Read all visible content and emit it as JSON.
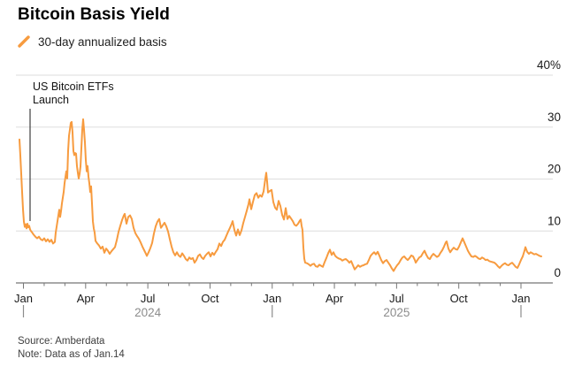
{
  "header": {
    "title": "Bitcoin Basis Yield",
    "legend": {
      "label": "30-day annualized basis"
    }
  },
  "annotation": {
    "line1": "US Bitcoin ETFs",
    "line2": "Launch"
  },
  "footer": {
    "source": "Source: Amberdata",
    "note": "Note: Data as of Jan.14"
  },
  "colors": {
    "line": "#F79B3F",
    "grid": "#DEDEDE",
    "axis": "#767676",
    "axis_label": "#1A1A1A",
    "year_label": "#8C8C8C",
    "annotation_line": "#3D3D3D",
    "background": "#FFFFFF"
  },
  "chart_data": {
    "type": "line",
    "title": "Bitcoin Basis Yield",
    "series_name": "30-day annualized basis",
    "unit": "percent",
    "ylim": [
      0,
      40
    ],
    "grid": "horizontal-only",
    "legend_position": "top-left",
    "y_axis": {
      "side": "right",
      "tick_values": [
        40,
        30,
        20,
        10,
        0
      ],
      "tick_labels": [
        "40%",
        "30",
        "20",
        "10",
        "0"
      ]
    },
    "x_axis": {
      "month_labels": [
        "Jan",
        "Apr",
        "Jul",
        "Oct",
        "Jan",
        "Apr",
        "Jul",
        "Oct",
        "Jan"
      ],
      "year_labels": [
        "2024",
        "2025"
      ],
      "months_total": 25,
      "label_every_n_months": 3,
      "range": "Jan 2024 - Jan 2026"
    },
    "annotation_text": "US Bitcoin ETFs Launch",
    "annotation_x_month": 0.35,
    "points": [
      [
        22,
        27.6
      ],
      [
        23,
        24.5
      ],
      [
        24,
        21.0
      ],
      [
        25,
        17.5
      ],
      [
        26,
        14.2
      ],
      [
        27,
        11.8
      ],
      [
        28,
        10.8
      ],
      [
        29,
        11.3
      ],
      [
        30,
        10.5
      ],
      [
        31,
        11.4
      ],
      [
        32,
        10.7
      ],
      [
        33,
        11.0
      ],
      [
        34,
        10.3
      ],
      [
        35,
        10.0
      ],
      [
        36,
        9.8
      ],
      [
        38,
        9.3
      ],
      [
        40,
        8.9
      ],
      [
        42,
        8.6
      ],
      [
        44,
        8.9
      ],
      [
        46,
        8.4
      ],
      [
        48,
        8.2
      ],
      [
        50,
        8.6
      ],
      [
        52,
        8.0
      ],
      [
        54,
        8.4
      ],
      [
        56,
        7.9
      ],
      [
        58,
        8.3
      ],
      [
        60,
        7.6
      ],
      [
        62,
        7.9
      ],
      [
        63,
        9.7
      ],
      [
        64,
        10.8
      ],
      [
        65,
        11.9
      ],
      [
        66,
        13.0
      ],
      [
        67,
        14.1
      ],
      [
        68,
        12.7
      ],
      [
        69,
        13.8
      ],
      [
        70,
        15.3
      ],
      [
        71,
        16.4
      ],
      [
        72,
        17.5
      ],
      [
        73,
        19.2
      ],
      [
        74,
        20.4
      ],
      [
        75,
        21.5
      ],
      [
        76,
        20.1
      ],
      [
        77,
        25.4
      ],
      [
        78,
        28.3
      ],
      [
        79,
        29.5
      ],
      [
        80,
        30.8
      ],
      [
        81,
        31.0
      ],
      [
        82,
        29.0
      ],
      [
        83,
        25.4
      ],
      [
        84,
        24.6
      ],
      [
        85,
        25.0
      ],
      [
        86,
        24.9
      ],
      [
        87,
        22.5
      ],
      [
        88,
        21.2
      ],
      [
        89,
        20.1
      ],
      [
        90,
        21.0
      ],
      [
        91,
        22.4
      ],
      [
        92,
        25.9
      ],
      [
        93,
        29.5
      ],
      [
        94,
        31.5
      ],
      [
        95,
        29.5
      ],
      [
        96,
        27.1
      ],
      [
        97,
        23.7
      ],
      [
        98,
        21.5
      ],
      [
        99,
        22.5
      ],
      [
        100,
        20.5
      ],
      [
        101,
        19.2
      ],
      [
        102,
        17.5
      ],
      [
        103,
        18.6
      ],
      [
        104,
        15.3
      ],
      [
        105,
        11.9
      ],
      [
        106,
        10.5
      ],
      [
        107,
        9.7
      ],
      [
        108,
        8.1
      ],
      [
        110,
        7.6
      ],
      [
        112,
        7.2
      ],
      [
        114,
        6.6
      ],
      [
        116,
        7.0
      ],
      [
        118,
        5.8
      ],
      [
        120,
        6.6
      ],
      [
        122,
        6.2
      ],
      [
        124,
        5.6
      ],
      [
        126,
        6.1
      ],
      [
        128,
        6.5
      ],
      [
        130,
        6.9
      ],
      [
        132,
        8.2
      ],
      [
        134,
        9.8
      ],
      [
        136,
        11.0
      ],
      [
        138,
        12.1
      ],
      [
        140,
        13.0
      ],
      [
        141,
        13.3
      ],
      [
        143,
        11.4
      ],
      [
        145,
        12.7
      ],
      [
        147,
        13.0
      ],
      [
        149,
        12.3
      ],
      [
        151,
        10.6
      ],
      [
        153,
        9.6
      ],
      [
        155,
        9.0
      ],
      [
        157,
        8.5
      ],
      [
        159,
        7.8
      ],
      [
        161,
        7.0
      ],
      [
        163,
        6.3
      ],
      [
        165,
        5.6
      ],
      [
        166,
        5.2
      ],
      [
        168,
        5.9
      ],
      [
        170,
        6.7
      ],
      [
        172,
        7.7
      ],
      [
        174,
        9.5
      ],
      [
        176,
        10.9
      ],
      [
        178,
        11.8
      ],
      [
        180,
        12.3
      ],
      [
        182,
        10.6
      ],
      [
        184,
        11.1
      ],
      [
        186,
        11.6
      ],
      [
        188,
        10.9
      ],
      [
        190,
        9.9
      ],
      [
        192,
        8.4
      ],
      [
        194,
        7.0
      ],
      [
        196,
        5.9
      ],
      [
        198,
        5.3
      ],
      [
        200,
        5.9
      ],
      [
        202,
        5.3
      ],
      [
        204,
        5.0
      ],
      [
        206,
        5.7
      ],
      [
        208,
        5.2
      ],
      [
        210,
        4.6
      ],
      [
        212,
        4.3
      ],
      [
        214,
        4.9
      ],
      [
        216,
        4.6
      ],
      [
        218,
        4.8
      ],
      [
        220,
        3.9
      ],
      [
        222,
        4.4
      ],
      [
        224,
        5.2
      ],
      [
        226,
        5.5
      ],
      [
        228,
        4.9
      ],
      [
        230,
        4.6
      ],
      [
        232,
        5.2
      ],
      [
        234,
        5.6
      ],
      [
        236,
        5.9
      ],
      [
        238,
        5.1
      ],
      [
        240,
        5.8
      ],
      [
        242,
        5.4
      ],
      [
        244,
        6.0
      ],
      [
        246,
        6.5
      ],
      [
        248,
        7.6
      ],
      [
        250,
        7.1
      ],
      [
        252,
        7.9
      ],
      [
        254,
        8.3
      ],
      [
        256,
        9.1
      ],
      [
        258,
        9.9
      ],
      [
        260,
        10.6
      ],
      [
        262,
        11.4
      ],
      [
        263,
        11.9
      ],
      [
        265,
        10.2
      ],
      [
        267,
        9.1
      ],
      [
        269,
        10.3
      ],
      [
        271,
        9.2
      ],
      [
        273,
        10.1
      ],
      [
        275,
        11.5
      ],
      [
        277,
        12.7
      ],
      [
        279,
        13.9
      ],
      [
        281,
        15.2
      ],
      [
        282,
        16.1
      ],
      [
        284,
        14.2
      ],
      [
        286,
        15.6
      ],
      [
        288,
        16.9
      ],
      [
        290,
        17.3
      ],
      [
        292,
        16.4
      ],
      [
        294,
        16.9
      ],
      [
        296,
        16.6
      ],
      [
        298,
        17.6
      ],
      [
        300,
        20.1
      ],
      [
        301,
        21.2
      ],
      [
        302,
        19.5
      ],
      [
        303,
        17.4
      ],
      [
        305,
        17.7
      ],
      [
        307,
        17.9
      ],
      [
        309,
        15.6
      ],
      [
        311,
        14.5
      ],
      [
        313,
        14.1
      ],
      [
        315,
        15.8
      ],
      [
        317,
        14.8
      ],
      [
        319,
        13.1
      ],
      [
        321,
        12.2
      ],
      [
        323,
        14.4
      ],
      [
        325,
        12.3
      ],
      [
        327,
        12.9
      ],
      [
        329,
        12.4
      ],
      [
        331,
        11.9
      ],
      [
        333,
        11.2
      ],
      [
        335,
        11.0
      ],
      [
        337,
        11.4
      ],
      [
        339,
        12.0
      ],
      [
        340,
        12.2
      ],
      [
        341,
        11.0
      ],
      [
        342,
        10.2
      ],
      [
        343,
        6.8
      ],
      [
        344,
        4.7
      ],
      [
        345,
        3.9
      ],
      [
        347,
        3.8
      ],
      [
        349,
        3.6
      ],
      [
        351,
        3.3
      ],
      [
        353,
        3.6
      ],
      [
        355,
        3.7
      ],
      [
        357,
        3.2
      ],
      [
        359,
        3.1
      ],
      [
        361,
        3.5
      ],
      [
        363,
        3.3
      ],
      [
        365,
        3.1
      ],
      [
        367,
        4.0
      ],
      [
        369,
        4.8
      ],
      [
        371,
        5.7
      ],
      [
        373,
        6.4
      ],
      [
        375,
        5.4
      ],
      [
        377,
        5.9
      ],
      [
        379,
        5.2
      ],
      [
        381,
        4.9
      ],
      [
        383,
        4.7
      ],
      [
        385,
        4.6
      ],
      [
        387,
        4.3
      ],
      [
        389,
        4.5
      ],
      [
        391,
        4.6
      ],
      [
        393,
        4.3
      ],
      [
        395,
        3.9
      ],
      [
        397,
        4.2
      ],
      [
        399,
        3.4
      ],
      [
        401,
        2.6
      ],
      [
        403,
        3.0
      ],
      [
        405,
        3.4
      ],
      [
        407,
        3.1
      ],
      [
        409,
        3.3
      ],
      [
        411,
        3.4
      ],
      [
        413,
        3.6
      ],
      [
        415,
        3.7
      ],
      [
        417,
        4.4
      ],
      [
        419,
        5.2
      ],
      [
        421,
        5.6
      ],
      [
        423,
        5.9
      ],
      [
        425,
        5.5
      ],
      [
        427,
        6.0
      ],
      [
        429,
        5.2
      ],
      [
        431,
        4.4
      ],
      [
        433,
        3.8
      ],
      [
        435,
        4.2
      ],
      [
        437,
        4.4
      ],
      [
        439,
        3.9
      ],
      [
        441,
        3.4
      ],
      [
        443,
        2.8
      ],
      [
        445,
        2.3
      ],
      [
        447,
        2.9
      ],
      [
        449,
        3.4
      ],
      [
        451,
        3.8
      ],
      [
        453,
        4.4
      ],
      [
        455,
        4.9
      ],
      [
        457,
        5.1
      ],
      [
        459,
        4.7
      ],
      [
        461,
        4.4
      ],
      [
        463,
        4.8
      ],
      [
        465,
        5.3
      ],
      [
        467,
        5.1
      ],
      [
        469,
        4.4
      ],
      [
        470,
        3.9
      ],
      [
        472,
        4.4
      ],
      [
        474,
        4.9
      ],
      [
        476,
        5.1
      ],
      [
        478,
        5.7
      ],
      [
        480,
        6.2
      ],
      [
        482,
        5.4
      ],
      [
        484,
        4.8
      ],
      [
        486,
        4.6
      ],
      [
        488,
        5.2
      ],
      [
        490,
        5.6
      ],
      [
        492,
        5.3
      ],
      [
        494,
        5.0
      ],
      [
        496,
        5.2
      ],
      [
        498,
        5.8
      ],
      [
        500,
        6.3
      ],
      [
        502,
        7.0
      ],
      [
        504,
        7.8
      ],
      [
        505,
        8.0
      ],
      [
        507,
        6.6
      ],
      [
        509,
        5.9
      ],
      [
        511,
        6.4
      ],
      [
        513,
        6.8
      ],
      [
        515,
        6.5
      ],
      [
        517,
        6.4
      ],
      [
        519,
        7.0
      ],
      [
        521,
        7.8
      ],
      [
        523,
        8.6
      ],
      [
        525,
        7.8
      ],
      [
        527,
        7.0
      ],
      [
        529,
        6.2
      ],
      [
        531,
        5.6
      ],
      [
        533,
        5.1
      ],
      [
        535,
        5.0
      ],
      [
        537,
        5.2
      ],
      [
        539,
        5.0
      ],
      [
        541,
        4.7
      ],
      [
        543,
        4.6
      ],
      [
        545,
        4.9
      ],
      [
        547,
        4.7
      ],
      [
        549,
        4.4
      ],
      [
        551,
        4.5
      ],
      [
        553,
        4.2
      ],
      [
        555,
        4.1
      ],
      [
        557,
        4.0
      ],
      [
        559,
        3.9
      ],
      [
        561,
        3.6
      ],
      [
        563,
        3.2
      ],
      [
        565,
        2.9
      ],
      [
        567,
        3.3
      ],
      [
        569,
        3.6
      ],
      [
        571,
        3.8
      ],
      [
        573,
        3.5
      ],
      [
        575,
        3.4
      ],
      [
        577,
        3.7
      ],
      [
        579,
        3.9
      ],
      [
        581,
        3.5
      ],
      [
        583,
        3.1
      ],
      [
        585,
        2.9
      ],
      [
        587,
        3.6
      ],
      [
        589,
        4.4
      ],
      [
        591,
        5.1
      ],
      [
        593,
        6.2
      ],
      [
        594,
        6.9
      ],
      [
        596,
        6.0
      ],
      [
        598,
        5.6
      ],
      [
        600,
        5.9
      ],
      [
        602,
        5.7
      ],
      [
        604,
        5.5
      ],
      [
        606,
        5.6
      ],
      [
        608,
        5.4
      ],
      [
        610,
        5.2
      ],
      [
        612,
        5.1
      ]
    ]
  }
}
